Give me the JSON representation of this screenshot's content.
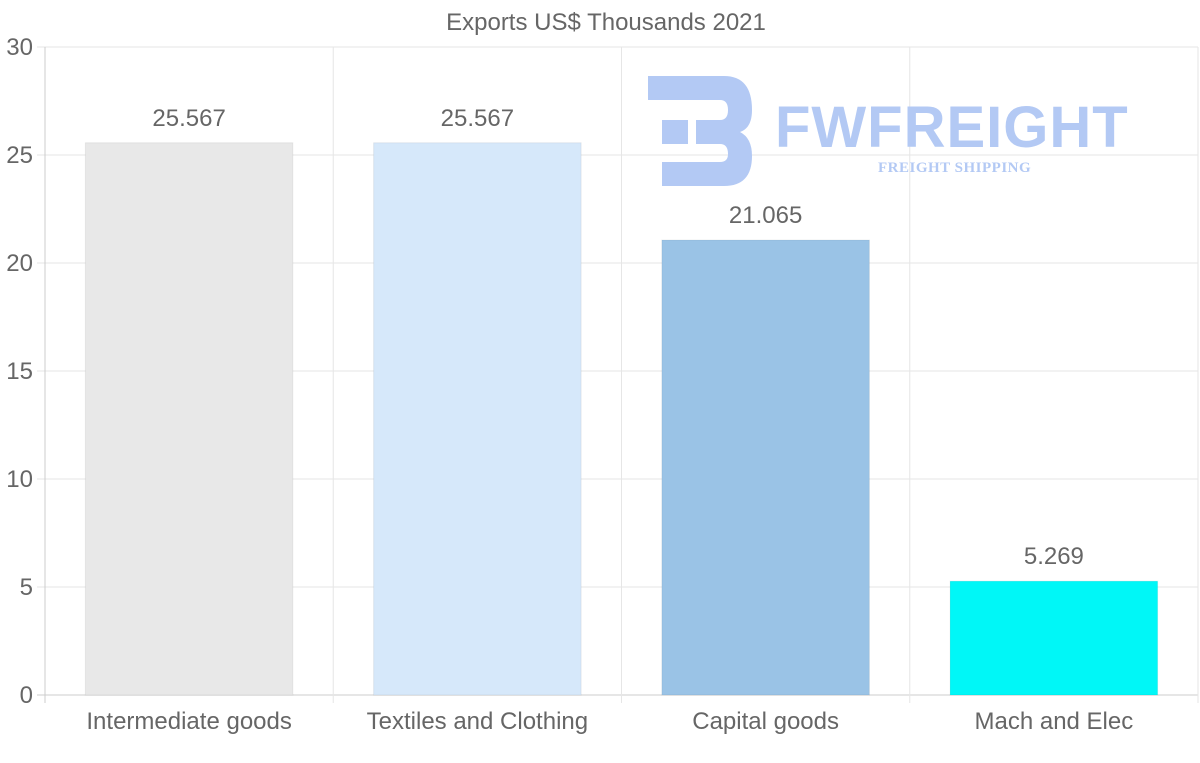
{
  "chart_data": {
    "type": "bar",
    "title": "Exports US$ Thousands 2021",
    "categories": [
      "Intermediate goods",
      "Textiles and Clothing",
      "Capital goods",
      "Mach and Elec"
    ],
    "values": [
      25.567,
      25.567,
      21.065,
      5.269
    ],
    "value_labels": [
      "25.567",
      "25.567",
      "21.065",
      "5.269"
    ],
    "colors": [
      "#e8e8e8",
      "#d6e8fa",
      "#9ac3e6",
      "#00f7f7"
    ],
    "ylim": [
      0,
      30
    ],
    "yticks": [
      0,
      5,
      10,
      15,
      20,
      25,
      30
    ],
    "xlabel": "",
    "ylabel": "",
    "grid": true,
    "legend": "none"
  },
  "watermark": {
    "brand": "FWFREIGHT",
    "tagline": "FREIGHT SHIPPING",
    "color": "#b3c9f4"
  }
}
